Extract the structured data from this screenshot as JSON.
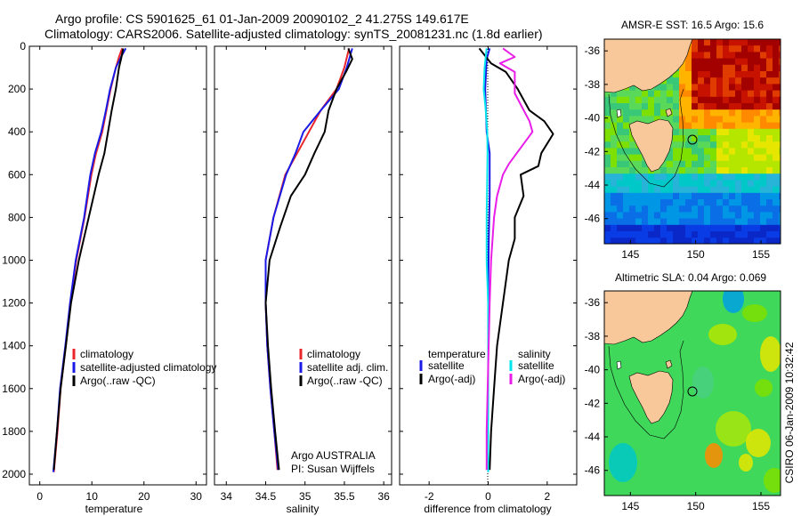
{
  "figure": {
    "title_line1": "Argo profile: CS 5901625_61 01-Jan-2009 20090102_2 41.275S 149.617E",
    "title_line2": "Climatology: CARS2006. Satellite-adjusted climatology: synTS_20081231.nc (1.8d earlier)",
    "side_stamp": "CSIRO 06-Jan-2009 10:32:42",
    "credit_line1": "Argo AUSTRALIA",
    "credit_line2": "PI: Susan Wijffels",
    "colors": {
      "climatology": "#e8262b",
      "satellite": "#1a1ae6",
      "argo": "#000000",
      "satellite_sal": "#00e5ee",
      "argo_sal": "#e81ee8",
      "land": "#f9c89a"
    }
  },
  "chart_data": [
    {
      "type": "line",
      "id": "temperature",
      "xlabel": "temperature",
      "ylabel": "",
      "xlim": [
        -2,
        32
      ],
      "ylim": [
        2050,
        0
      ],
      "xticks": [
        0,
        10,
        20,
        30
      ],
      "yticks": [
        0,
        200,
        400,
        600,
        800,
        1000,
        1200,
        1400,
        1600,
        1800,
        2000
      ],
      "legend": [
        "climatology",
        "satellite-adjusted climatology",
        "Argo(..raw -QC)"
      ],
      "series": [
        {
          "name": "climatology",
          "color": "#e8262b",
          "points": [
            [
              15.8,
              10
            ],
            [
              15.2,
              50
            ],
            [
              14.6,
              100
            ],
            [
              13.6,
              200
            ],
            [
              12.8,
              300
            ],
            [
              12.0,
              400
            ],
            [
              10.8,
              500
            ],
            [
              9.9,
              600
            ],
            [
              8.6,
              800
            ],
            [
              7.0,
              1000
            ],
            [
              5.9,
              1200
            ],
            [
              5.0,
              1400
            ],
            [
              4.0,
              1600
            ],
            [
              3.4,
              1800
            ],
            [
              2.7,
              1990
            ]
          ]
        },
        {
          "name": "satellite-adjusted climatology",
          "color": "#1a1ae6",
          "points": [
            [
              16.5,
              10
            ],
            [
              15.6,
              50
            ],
            [
              14.6,
              100
            ],
            [
              13.5,
              200
            ],
            [
              12.7,
              300
            ],
            [
              11.8,
              400
            ],
            [
              10.6,
              500
            ],
            [
              9.7,
              600
            ],
            [
              8.5,
              800
            ],
            [
              6.9,
              1000
            ],
            [
              5.8,
              1200
            ],
            [
              4.9,
              1400
            ],
            [
              3.9,
              1600
            ],
            [
              3.3,
              1800
            ],
            [
              2.6,
              1990
            ]
          ]
        },
        {
          "name": "Argo(..raw -QC)",
          "color": "#000000",
          "points": [
            [
              16.0,
              10
            ],
            [
              15.6,
              60
            ],
            [
              15.2,
              100
            ],
            [
              14.6,
              200
            ],
            [
              13.8,
              300
            ],
            [
              13.1,
              400
            ],
            [
              12.4,
              500
            ],
            [
              11.3,
              600
            ],
            [
              9.4,
              800
            ],
            [
              7.5,
              1000
            ],
            [
              6.0,
              1200
            ],
            [
              5.0,
              1400
            ],
            [
              4.0,
              1600
            ],
            [
              3.3,
              1800
            ],
            [
              2.7,
              1980
            ]
          ]
        }
      ]
    },
    {
      "type": "line",
      "id": "salinity",
      "xlabel": "salinity",
      "xlim": [
        33.85,
        36.1
      ],
      "ylim": [
        2050,
        0
      ],
      "xticks": [
        34,
        34.5,
        35,
        35.5,
        36
      ],
      "legend": [
        "climatology",
        "satellite adj. clim.",
        "Argo(..raw -QC)"
      ],
      "series": [
        {
          "name": "climatology",
          "color": "#e8262b",
          "points": [
            [
              35.56,
              10
            ],
            [
              35.5,
              100
            ],
            [
              35.4,
              200
            ],
            [
              35.2,
              300
            ],
            [
              35.05,
              400
            ],
            [
              34.9,
              500
            ],
            [
              34.75,
              600
            ],
            [
              34.6,
              800
            ],
            [
              34.5,
              1000
            ],
            [
              34.5,
              1200
            ],
            [
              34.52,
              1400
            ],
            [
              34.56,
              1600
            ],
            [
              34.61,
              1800
            ],
            [
              34.65,
              1980
            ]
          ]
        },
        {
          "name": "satellite adj. clim.",
          "color": "#1a1ae6",
          "points": [
            [
              35.6,
              10
            ],
            [
              35.53,
              100
            ],
            [
              35.43,
              200
            ],
            [
              35.2,
              300
            ],
            [
              34.98,
              400
            ],
            [
              34.88,
              500
            ],
            [
              34.76,
              600
            ],
            [
              34.6,
              800
            ],
            [
              34.5,
              1000
            ],
            [
              34.5,
              1200
            ],
            [
              34.52,
              1400
            ],
            [
              34.56,
              1600
            ],
            [
              34.61,
              1800
            ],
            [
              34.66,
              1980
            ]
          ]
        },
        {
          "name": "Argo(..raw -QC)",
          "color": "#000000",
          "points": [
            [
              35.55,
              10
            ],
            [
              35.6,
              60
            ],
            [
              35.52,
              120
            ],
            [
              35.4,
              200
            ],
            [
              35.3,
              300
            ],
            [
              35.25,
              400
            ],
            [
              35.12,
              500
            ],
            [
              35.0,
              600
            ],
            [
              34.82,
              700
            ],
            [
              34.68,
              850
            ],
            [
              34.55,
              1000
            ],
            [
              34.5,
              1200
            ],
            [
              34.53,
              1400
            ],
            [
              34.57,
              1600
            ],
            [
              34.62,
              1800
            ],
            [
              34.67,
              1980
            ]
          ]
        }
      ]
    },
    {
      "type": "line",
      "id": "difference",
      "xlabel": "difference from climatology",
      "xlim": [
        -3,
        3
      ],
      "ylim": [
        2050,
        0
      ],
      "xticks": [
        -2,
        0,
        2
      ],
      "legend_left_title": "temperature",
      "legend_right_title": "salinity",
      "legend": [
        "satellite",
        "Argo(-adj)",
        "satellite",
        "Argo(-adj)"
      ],
      "series": [
        {
          "name": "temperature satellite",
          "color": "#1a1ae6",
          "points": [
            [
              0.05,
              10
            ],
            [
              -0.05,
              60
            ],
            [
              -0.1,
              200
            ],
            [
              -0.05,
              400
            ],
            [
              0.05,
              500
            ],
            [
              0.05,
              700
            ],
            [
              0.02,
              900
            ],
            [
              0.0,
              1200
            ],
            [
              0.0,
              1500
            ],
            [
              0.0,
              1990
            ]
          ]
        },
        {
          "name": "temperature Argo(-adj)",
          "color": "#000000",
          "points": [
            [
              -0.3,
              10
            ],
            [
              0.1,
              80
            ],
            [
              0.6,
              120
            ],
            [
              1.0,
              200
            ],
            [
              1.4,
              300
            ],
            [
              1.9,
              350
            ],
            [
              2.2,
              410
            ],
            [
              1.8,
              500
            ],
            [
              1.7,
              560
            ],
            [
              1.1,
              600
            ],
            [
              1.2,
              700
            ],
            [
              0.9,
              800
            ],
            [
              0.9,
              900
            ],
            [
              0.7,
              1000
            ],
            [
              0.5,
              1200
            ],
            [
              0.3,
              1400
            ],
            [
              0.2,
              1600
            ],
            [
              0.1,
              1800
            ],
            [
              0.05,
              1980
            ]
          ]
        },
        {
          "name": "salinity satellite",
          "color": "#00e5ee",
          "points": [
            [
              -0.05,
              10
            ],
            [
              -0.12,
              100
            ],
            [
              -0.15,
              200
            ],
            [
              -0.08,
              300
            ],
            [
              -0.03,
              400
            ],
            [
              -0.02,
              500
            ],
            [
              -0.03,
              600
            ],
            [
              -0.05,
              800
            ],
            [
              -0.05,
              1000
            ],
            [
              0.0,
              1200
            ],
            [
              0.0,
              1500
            ],
            [
              0.0,
              1990
            ]
          ]
        },
        {
          "name": "salinity Argo(-adj)",
          "color": "#e81ee8",
          "points": [
            [
              0.5,
              10
            ],
            [
              0.9,
              50
            ],
            [
              0.4,
              80
            ],
            [
              0.9,
              120
            ],
            [
              0.9,
              220
            ],
            [
              1.4,
              350
            ],
            [
              1.5,
              400
            ],
            [
              0.7,
              550
            ],
            [
              0.5,
              600
            ],
            [
              0.3,
              700
            ],
            [
              0.2,
              800
            ],
            [
              0.1,
              1000
            ],
            [
              0.05,
              1200
            ],
            [
              0.0,
              1500
            ],
            [
              -0.05,
              1800
            ],
            [
              -0.05,
              1980
            ]
          ]
        }
      ]
    },
    {
      "type": "heatmap",
      "id": "sst_map",
      "title": "AMSR-E SST: 16.5 Argo: 15.6",
      "xlim": [
        143,
        156.5
      ],
      "ylim": [
        -47.5,
        -35.3
      ],
      "xticks": [
        145,
        150,
        155
      ],
      "yticks": [
        -36,
        -38,
        -40,
        -42,
        -44,
        -46
      ],
      "argo_position": [
        149.617,
        -41.275
      ]
    },
    {
      "type": "heatmap",
      "id": "sla_map",
      "title": "Altimetric SLA: 0.04 Argo: 0.069",
      "xlim": [
        143,
        156.5
      ],
      "ylim": [
        -47.5,
        -35.3
      ],
      "xticks": [
        145,
        150,
        155
      ],
      "yticks": [
        -36,
        -38,
        -40,
        -42,
        -44,
        -46
      ],
      "argo_position": [
        149.617,
        -41.275
      ]
    }
  ]
}
